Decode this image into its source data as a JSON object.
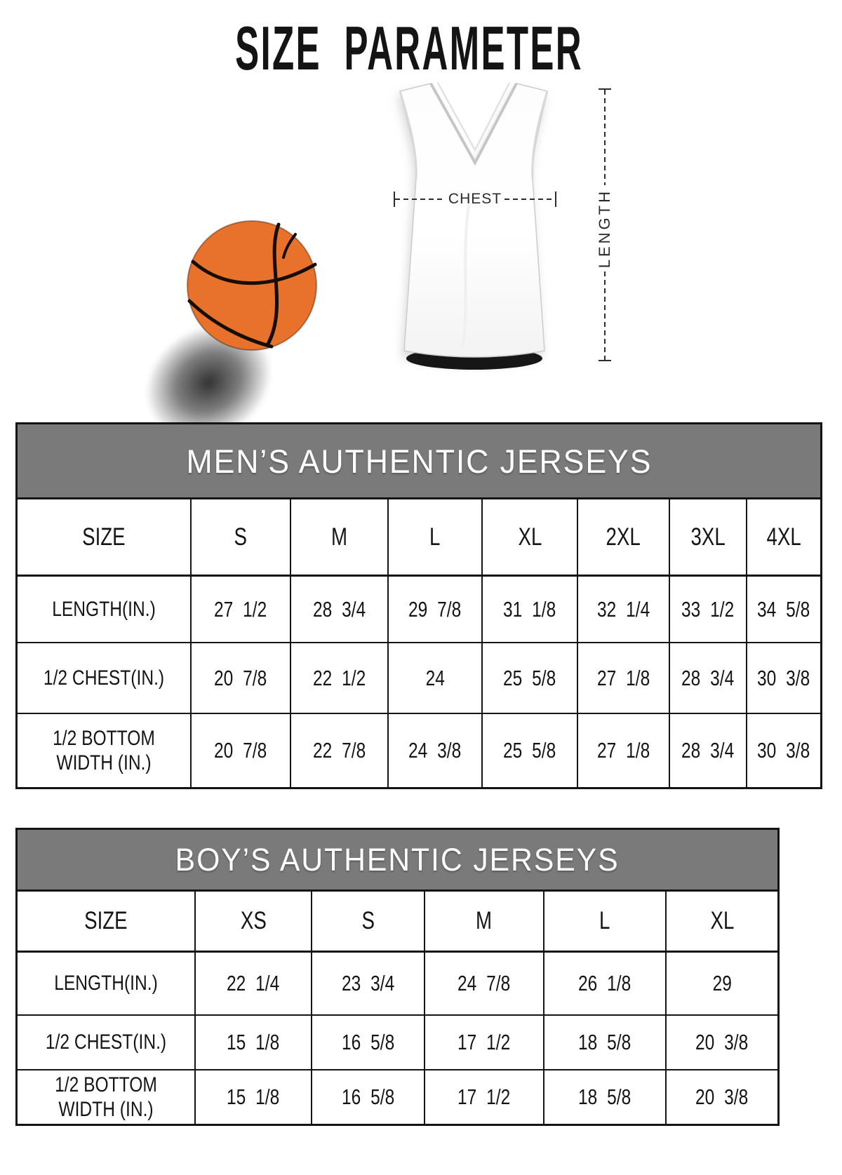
{
  "page_title": "SIZE PARAMETER",
  "diagram": {
    "chest_label": "CHEST",
    "length_label": "LENGTH"
  },
  "colors": {
    "band_gray": "#7a7a7a",
    "border_black": "#141414",
    "basketball_orange": "#e8722c",
    "jersey_white": "#ffffff"
  },
  "tables": [
    {
      "title": "MEN’S AUTHENTIC JERSEYS",
      "columns": [
        "SIZE",
        "S",
        "M",
        "L",
        "XL",
        "2XL",
        "3XL",
        "4XL"
      ],
      "rows": [
        {
          "label": "LENGTH(IN.)",
          "values": [
            "27 1/2",
            "28 3/4",
            "29 7/8",
            "31 1/8",
            "32 1/4",
            "33 1/2",
            "34 5/8"
          ]
        },
        {
          "label": "1/2 CHEST(IN.)",
          "values": [
            "20 7/8",
            "22 1/2",
            "24",
            "25 5/8",
            "27 1/8",
            "28 3/4",
            "30 3/8"
          ]
        },
        {
          "label": "1/2 BOTTOM WIDTH (IN.)",
          "values": [
            "20 7/8",
            "22 7/8",
            "24 3/8",
            "25 5/8",
            "27 1/8",
            "28 3/4",
            "30 3/8"
          ]
        }
      ]
    },
    {
      "title": "BOY’S AUTHENTIC JERSEYS",
      "columns": [
        "SIZE",
        "XS",
        "S",
        "M",
        "L",
        "XL"
      ],
      "rows": [
        {
          "label": "LENGTH(IN.)",
          "values": [
            "22 1/4",
            "23 3/4",
            "24 7/8",
            "26 1/8",
            "29"
          ]
        },
        {
          "label": "1/2 CHEST(IN.)",
          "values": [
            "15 1/8",
            "16 5/8",
            "17 1/2",
            "18 5/8",
            "20 3/8"
          ]
        },
        {
          "label": "1/2 BOTTOM WIDTH (IN.)",
          "values": [
            "15 1/8",
            "16 5/8",
            "17 1/2",
            "18 5/8",
            "20 3/8"
          ]
        }
      ]
    }
  ]
}
